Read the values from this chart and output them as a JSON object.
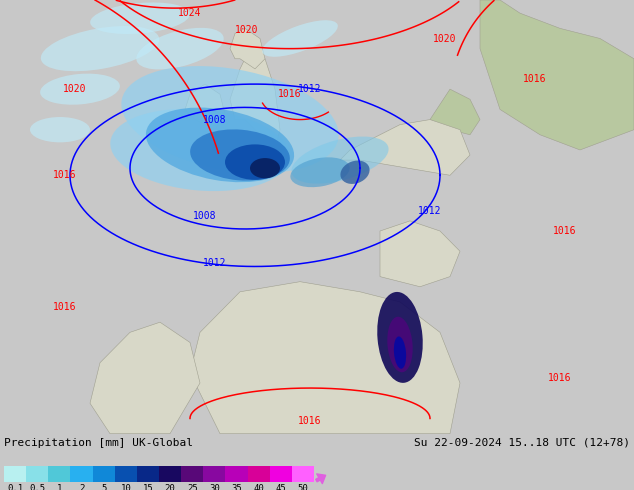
{
  "title_left": "Precipitation [mm] UK-Global",
  "title_right": "Su 22-09-2024 15..18 UTC (12+78)",
  "colorbar_levels": [
    "0.1",
    "0.5",
    "1",
    "2",
    "5",
    "10",
    "15",
    "20",
    "25",
    "30",
    "35",
    "40",
    "45",
    "50"
  ],
  "colorbar_colors": [
    "#b8f0f0",
    "#88e0e8",
    "#50c8d8",
    "#28b0f0",
    "#1088d8",
    "#0850b0",
    "#082888",
    "#180860",
    "#580878",
    "#8808a0",
    "#b800b8",
    "#d80098",
    "#f000e0",
    "#ff60ff"
  ],
  "ocean_color": "#c8d8e8",
  "land_color": "#d8d8c8",
  "land_green": "#b8c8a0",
  "bg_color": "#c8c8c8",
  "fig_width": 6.34,
  "fig_height": 4.9,
  "dpi": 100
}
